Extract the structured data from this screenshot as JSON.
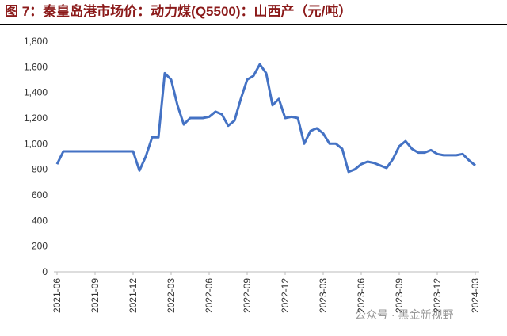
{
  "chart_data": {
    "type": "line",
    "title": "图 7：秦皇岛港市场价：动力煤(Q5500)：山西产（元/吨）",
    "watermark": "公众号 · 黑金新视野",
    "categories": [
      "2021-06",
      null,
      null,
      null,
      null,
      null,
      "2021-09",
      null,
      null,
      null,
      null,
      null,
      "2021-12",
      null,
      null,
      null,
      null,
      null,
      "2022-03",
      null,
      null,
      null,
      null,
      null,
      "2022-06",
      null,
      null,
      null,
      null,
      null,
      "2022-09",
      null,
      null,
      null,
      null,
      null,
      "2022-12",
      null,
      null,
      null,
      null,
      null,
      "2023-03",
      null,
      null,
      null,
      null,
      null,
      "2023-06",
      null,
      null,
      null,
      null,
      null,
      "2023-09",
      null,
      null,
      null,
      null,
      null,
      "2023-12",
      null,
      null,
      null,
      null,
      null,
      "2024-03"
    ],
    "series": [
      {
        "name": "动力煤(Q5500)：山西产",
        "color": "#4472c4",
        "values": [
          840,
          940,
          940,
          940,
          940,
          940,
          940,
          940,
          940,
          940,
          940,
          940,
          940,
          790,
          900,
          1050,
          1050,
          1550,
          1500,
          1300,
          1150,
          1200,
          1200,
          1200,
          1210,
          1250,
          1230,
          1140,
          1180,
          1350,
          1500,
          1530,
          1620,
          1550,
          1300,
          1350,
          1200,
          1210,
          1200,
          1000,
          1100,
          1120,
          1080,
          1000,
          1000,
          960,
          780,
          800,
          840,
          860,
          850,
          830,
          810,
          880,
          980,
          1020,
          960,
          930,
          930,
          950,
          920,
          910,
          910,
          910,
          920,
          870,
          830
        ]
      }
    ],
    "ylim": [
      0,
      1800
    ],
    "yticks": [
      0,
      200,
      400,
      600,
      800,
      {
        "value": 1000,
        "label": "1,000"
      },
      {
        "value": 1200,
        "label": "1,200"
      },
      {
        "value": 1400,
        "label": "1,400"
      },
      {
        "value": 1600,
        "label": "1,600"
      },
      {
        "value": 1800,
        "label": "1,800"
      }
    ],
    "grid": false
  }
}
